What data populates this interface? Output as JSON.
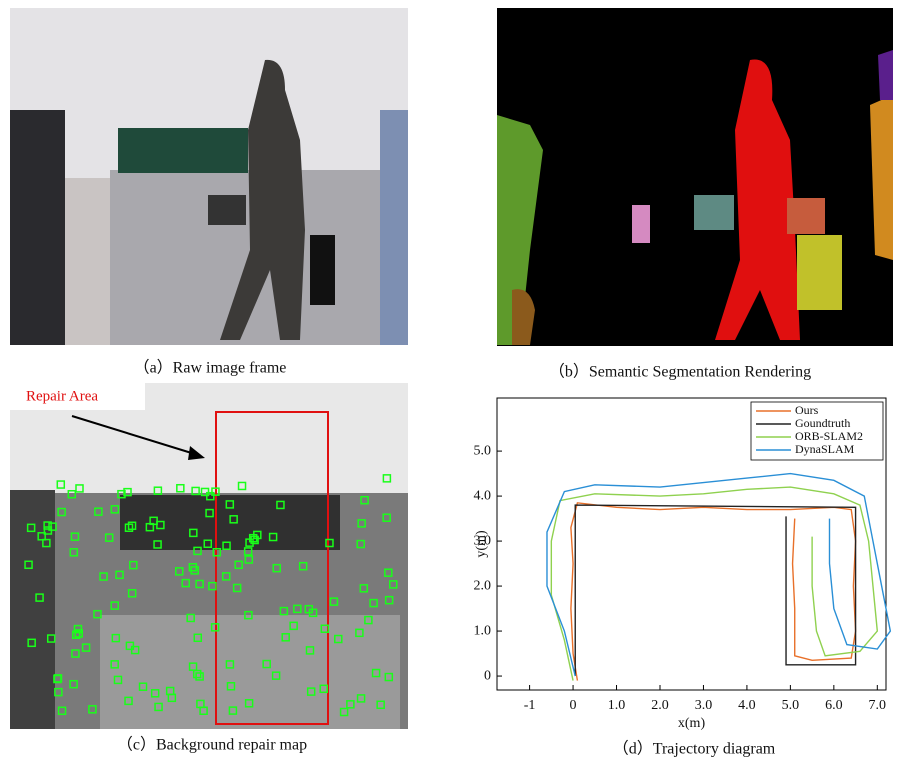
{
  "panels": {
    "a": {
      "caption": "（a）Raw image frame"
    },
    "b": {
      "caption": "（b）Semantic Segmentation Rendering"
    },
    "c": {
      "caption": "（c）Background repair map",
      "annotation": "Repair Area"
    },
    "d": {
      "caption": "（d）Trajectory diagram"
    }
  },
  "chart_data": {
    "type": "line",
    "xlabel": "x(m)",
    "ylabel": "y(m)",
    "xlim": [
      -1.75,
      7.2
    ],
    "ylim": [
      -0.31,
      6.18
    ],
    "xticks": [
      -1,
      0,
      {
        "value": 1,
        "label": "1.0"
      },
      {
        "value": 2,
        "label": "2.0"
      },
      {
        "value": 3,
        "label": "3.0"
      },
      {
        "value": 4,
        "label": "4.0"
      },
      {
        "value": 5,
        "label": "5.0"
      },
      {
        "value": 6,
        "label": "6.0"
      },
      {
        "value": 7,
        "label": "7.0"
      }
    ],
    "yticks": [
      0,
      {
        "value": 1,
        "label": "1.0"
      },
      {
        "value": 2,
        "label": "2.0"
      },
      {
        "value": 3,
        "label": "3.0"
      },
      {
        "value": 4,
        "label": "4.0"
      },
      {
        "value": 5,
        "label": "5.0"
      }
    ],
    "legend": "upper right",
    "series": [
      {
        "name": "Ours",
        "color": "#e8702a",
        "x": [
          0.1,
          0.0,
          -0.05,
          0.0,
          -0.05,
          0.1,
          1,
          2,
          3,
          4,
          5,
          6,
          6.4,
          6.5,
          6.45,
          6.5,
          6.4,
          5.5,
          5.1,
          5.1,
          5.05,
          5.1
        ],
        "values": [
          -0.1,
          0.5,
          1.5,
          2.5,
          3.3,
          3.85,
          3.75,
          3.7,
          3.75,
          3.7,
          3.7,
          3.75,
          3.7,
          3,
          2,
          1,
          0.4,
          0.35,
          0.45,
          1.5,
          2.5,
          3.5
        ]
      },
      {
        "name": "Goundtruth",
        "color": "#222222",
        "x": [
          0.05,
          0.05,
          6.5,
          6.5,
          4.9,
          4.9
        ],
        "values": [
          0,
          3.8,
          3.75,
          0.25,
          0.25,
          3.55
        ]
      },
      {
        "name": "ORB-SLAM2",
        "color": "#8fd14f",
        "x": [
          0,
          -0.2,
          -0.5,
          -0.5,
          -0.3,
          0.5,
          2,
          3,
          4,
          5,
          6,
          6.6,
          6.8,
          6.9,
          7.0,
          6.6,
          5.8,
          5.6,
          5.5,
          5.5
        ],
        "values": [
          -0.1,
          0.8,
          1.8,
          3,
          3.9,
          4.05,
          4.0,
          4.05,
          4.15,
          4.2,
          4.05,
          3.8,
          3,
          2,
          1,
          0.55,
          0.45,
          1,
          2,
          3.1
        ]
      },
      {
        "name": "DynaSLAM",
        "color": "#2a8fd6",
        "x": [
          0.05,
          -0.2,
          -0.6,
          -0.6,
          -0.2,
          0.5,
          2,
          3,
          4,
          5,
          6,
          6.7,
          6.9,
          7.1,
          7.3,
          7.0,
          6.3,
          6.0,
          5.9,
          5.9
        ],
        "values": [
          0,
          1,
          2,
          3.2,
          4.1,
          4.25,
          4.2,
          4.3,
          4.4,
          4.5,
          4.35,
          4,
          3,
          2,
          1,
          0.6,
          0.7,
          1.5,
          2.5,
          3.5
        ]
      }
    ]
  }
}
